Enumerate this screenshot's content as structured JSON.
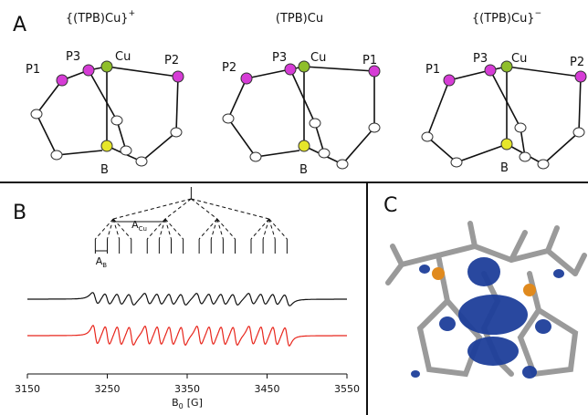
{
  "panels": {
    "a": {
      "label": "A",
      "complexes": [
        {
          "title": {
            "base": "{(TPB)Cu}",
            "charge": "+"
          },
          "atoms": [
            "P1",
            "P3",
            "Cu",
            "P2",
            "B"
          ]
        },
        {
          "title": {
            "base": "(TPB)Cu"
          },
          "atoms": [
            "P2",
            "P3",
            "Cu",
            "P1",
            "B"
          ]
        },
        {
          "title": {
            "base": "{(TPB)Cu}",
            "charge": "−"
          },
          "atoms": [
            "P1",
            "P3",
            "Cu",
            "P2",
            "B"
          ]
        }
      ]
    },
    "b": {
      "label": "B",
      "splitting_labels": {
        "cu": {
          "symbol": "A",
          "subscript": "Cu"
        },
        "b": {
          "symbol": "A",
          "subscript": "B"
        }
      },
      "x_axis": {
        "label": {
          "symbol": "B",
          "subscript": "0",
          "unit": "[G]"
        },
        "xlim": [
          3150,
          3550
        ],
        "xticks": [
          3150,
          3250,
          3350,
          3450,
          3550
        ]
      }
    },
    "c": {
      "label": "C"
    }
  }
}
